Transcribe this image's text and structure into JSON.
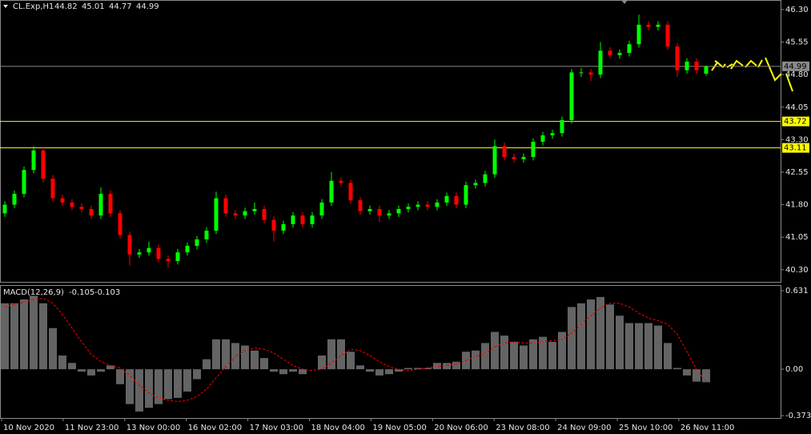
{
  "chart_data": [
    {
      "type": "candlestick",
      "symbol": "CL.Exp,H1",
      "up_color": "#00ff00",
      "down_color": "#ff0000",
      "open": [
        41.6,
        41.8,
        42.05,
        42.6,
        43.05,
        42.4,
        41.95,
        41.85,
        41.75,
        41.7,
        41.55,
        42.05,
        41.6,
        41.1,
        40.65,
        40.7,
        40.8,
        40.55,
        40.5,
        40.7,
        40.85,
        41.0,
        41.2,
        41.95,
        41.6,
        41.55,
        41.65,
        41.7,
        41.45,
        41.2,
        41.35,
        41.55,
        41.35,
        41.55,
        41.85,
        42.35,
        42.3,
        41.9,
        41.65,
        41.7,
        41.55,
        41.6,
        41.7,
        41.75,
        41.8,
        41.75,
        41.85,
        42.0,
        41.8,
        42.25,
        42.3,
        42.5,
        43.15,
        42.9,
        42.85,
        42.9,
        43.25,
        43.4,
        43.45,
        43.75,
        44.85,
        44.85,
        44.8,
        45.35,
        45.25,
        45.3,
        45.5,
        45.95,
        45.9,
        45.95,
        45.45,
        44.9,
        45.1,
        44.82
      ],
      "high": [
        41.88,
        42.13,
        42.68,
        43.15,
        43.13,
        42.48,
        42.03,
        41.93,
        41.83,
        41.78,
        42.2,
        42.13,
        41.68,
        41.18,
        40.78,
        40.95,
        40.88,
        40.63,
        40.78,
        40.93,
        41.08,
        41.28,
        42.1,
        42.03,
        41.68,
        41.73,
        41.85,
        41.78,
        41.53,
        41.43,
        41.63,
        41.63,
        41.63,
        41.93,
        42.55,
        42.43,
        42.38,
        41.98,
        41.78,
        41.78,
        41.68,
        41.78,
        41.83,
        41.88,
        41.88,
        41.93,
        42.08,
        42.08,
        42.33,
        42.38,
        42.58,
        43.3,
        43.23,
        42.98,
        42.98,
        43.33,
        43.48,
        43.53,
        43.83,
        44.93,
        44.95,
        44.93,
        45.55,
        45.43,
        45.38,
        45.58,
        46.18,
        46.03,
        46.03,
        46.03,
        45.53,
        45.18,
        45.18,
        45.01
      ],
      "low": [
        41.52,
        41.72,
        41.97,
        42.52,
        42.32,
        41.87,
        41.77,
        41.67,
        41.62,
        41.47,
        41.47,
        41.52,
        41.02,
        40.4,
        40.57,
        40.62,
        40.47,
        40.35,
        40.42,
        40.62,
        40.77,
        40.92,
        41.12,
        41.52,
        41.47,
        41.47,
        41.57,
        41.37,
        40.95,
        41.12,
        41.27,
        41.27,
        41.27,
        41.47,
        41.77,
        42.22,
        41.82,
        41.57,
        41.57,
        41.4,
        41.47,
        41.52,
        41.62,
        41.67,
        41.67,
        41.67,
        41.77,
        41.72,
        41.72,
        42.17,
        42.22,
        42.42,
        42.82,
        42.77,
        42.77,
        42.82,
        43.17,
        43.32,
        43.37,
        43.67,
        44.75,
        44.65,
        44.72,
        45.17,
        45.17,
        45.22,
        45.42,
        45.82,
        45.82,
        45.37,
        44.75,
        44.82,
        44.82,
        44.77
      ],
      "close": [
        41.8,
        42.05,
        42.6,
        43.05,
        42.4,
        41.95,
        41.85,
        41.75,
        41.7,
        41.55,
        42.05,
        41.6,
        41.1,
        40.65,
        40.7,
        40.8,
        40.55,
        40.5,
        40.7,
        40.85,
        41.0,
        41.2,
        41.95,
        41.6,
        41.55,
        41.65,
        41.7,
        41.45,
        41.2,
        41.35,
        41.55,
        41.35,
        41.55,
        41.85,
        42.35,
        42.3,
        41.9,
        41.65,
        41.7,
        41.55,
        41.6,
        41.7,
        41.75,
        41.8,
        41.75,
        41.85,
        42.0,
        41.8,
        42.25,
        42.3,
        42.5,
        43.15,
        42.9,
        42.85,
        42.9,
        43.25,
        43.4,
        43.45,
        43.75,
        44.85,
        44.85,
        44.8,
        45.35,
        45.25,
        45.3,
        45.5,
        45.95,
        45.9,
        45.95,
        45.45,
        44.9,
        45.1,
        44.9,
        44.99
      ],
      "ylim": [
        40.02,
        46.52
      ],
      "yticks": [
        {
          "value": 46.3,
          "label": "46.30"
        },
        {
          "value": 45.55,
          "label": "45.55"
        },
        {
          "value": 44.8,
          "label": "44.80"
        },
        {
          "value": 44.05,
          "label": "44.05"
        },
        {
          "value": 43.3,
          "label": "43.30"
        },
        {
          "value": 42.55,
          "label": "42.55"
        },
        {
          "value": 41.8,
          "label": "41.80"
        },
        {
          "value": 41.05,
          "label": "41.05"
        },
        {
          "value": 40.3,
          "label": "40.30"
        }
      ],
      "hlines": [
        {
          "value": 44.99,
          "color": "#8a8a8a"
        },
        {
          "value": 43.72,
          "color": "#ffff00"
        },
        {
          "value": 43.11,
          "color": "#ffff00"
        }
      ],
      "xtick_labels": [
        "10 Nov 2020",
        "11 Nov 23:00",
        "13 Nov 00:00",
        "16 Nov 02:00",
        "17 Nov 03:00",
        "18 Nov 04:00",
        "19 Nov 05:00",
        "20 Nov 06:00",
        "23 Nov 08:00",
        "24 Nov 09:00",
        "25 Nov 10:00",
        "26 Nov 11:00"
      ]
    },
    {
      "type": "macd",
      "name": "MACD(12,26,9)",
      "histogram_color": "#c8c8c8",
      "signal_color": "#ff0000",
      "histogram": [
        0.53,
        0.53,
        0.56,
        0.59,
        0.53,
        0.33,
        0.11,
        0.05,
        -0.02,
        -0.05,
        -0.02,
        0.03,
        -0.12,
        -0.28,
        -0.34,
        -0.31,
        -0.28,
        -0.24,
        -0.23,
        -0.18,
        -0.08,
        0.08,
        0.24,
        0.24,
        0.21,
        0.19,
        0.15,
        0.09,
        -0.02,
        -0.04,
        -0.02,
        -0.04,
        0.0,
        0.11,
        0.24,
        0.24,
        0.14,
        0.03,
        -0.02,
        -0.05,
        -0.04,
        -0.02,
        0.01,
        0.01,
        0.01,
        0.05,
        0.05,
        0.06,
        0.14,
        0.15,
        0.21,
        0.3,
        0.27,
        0.22,
        0.19,
        0.24,
        0.26,
        0.22,
        0.3,
        0.5,
        0.53,
        0.56,
        0.58,
        0.52,
        0.43,
        0.37,
        0.37,
        0.37,
        0.35,
        0.21,
        0.01,
        -0.05,
        -0.1,
        -0.105
      ],
      "signal": [
        0.5,
        0.52,
        0.54,
        0.56,
        0.57,
        0.53,
        0.44,
        0.33,
        0.22,
        0.12,
        0.06,
        0.03,
        0.01,
        -0.05,
        -0.13,
        -0.19,
        -0.23,
        -0.25,
        -0.26,
        -0.25,
        -0.22,
        -0.16,
        -0.07,
        0.02,
        0.1,
        0.15,
        0.17,
        0.16,
        0.13,
        0.08,
        0.03,
        0.0,
        -0.01,
        0.0,
        0.05,
        0.11,
        0.16,
        0.15,
        0.11,
        0.06,
        0.02,
        0.0,
        -0.01,
        0.0,
        0.01,
        0.02,
        0.03,
        0.04,
        0.07,
        0.1,
        0.13,
        0.18,
        0.21,
        0.22,
        0.21,
        0.21,
        0.22,
        0.23,
        0.24,
        0.29,
        0.36,
        0.43,
        0.49,
        0.53,
        0.53,
        0.5,
        0.45,
        0.41,
        0.39,
        0.36,
        0.28,
        0.14,
        0.0,
        -0.103
      ],
      "ylim": [
        -0.392,
        0.676
      ],
      "yticks": [
        0.631,
        {
          "value": 0,
          "label": "0.00"
        },
        -0.373
      ]
    }
  ]
}
